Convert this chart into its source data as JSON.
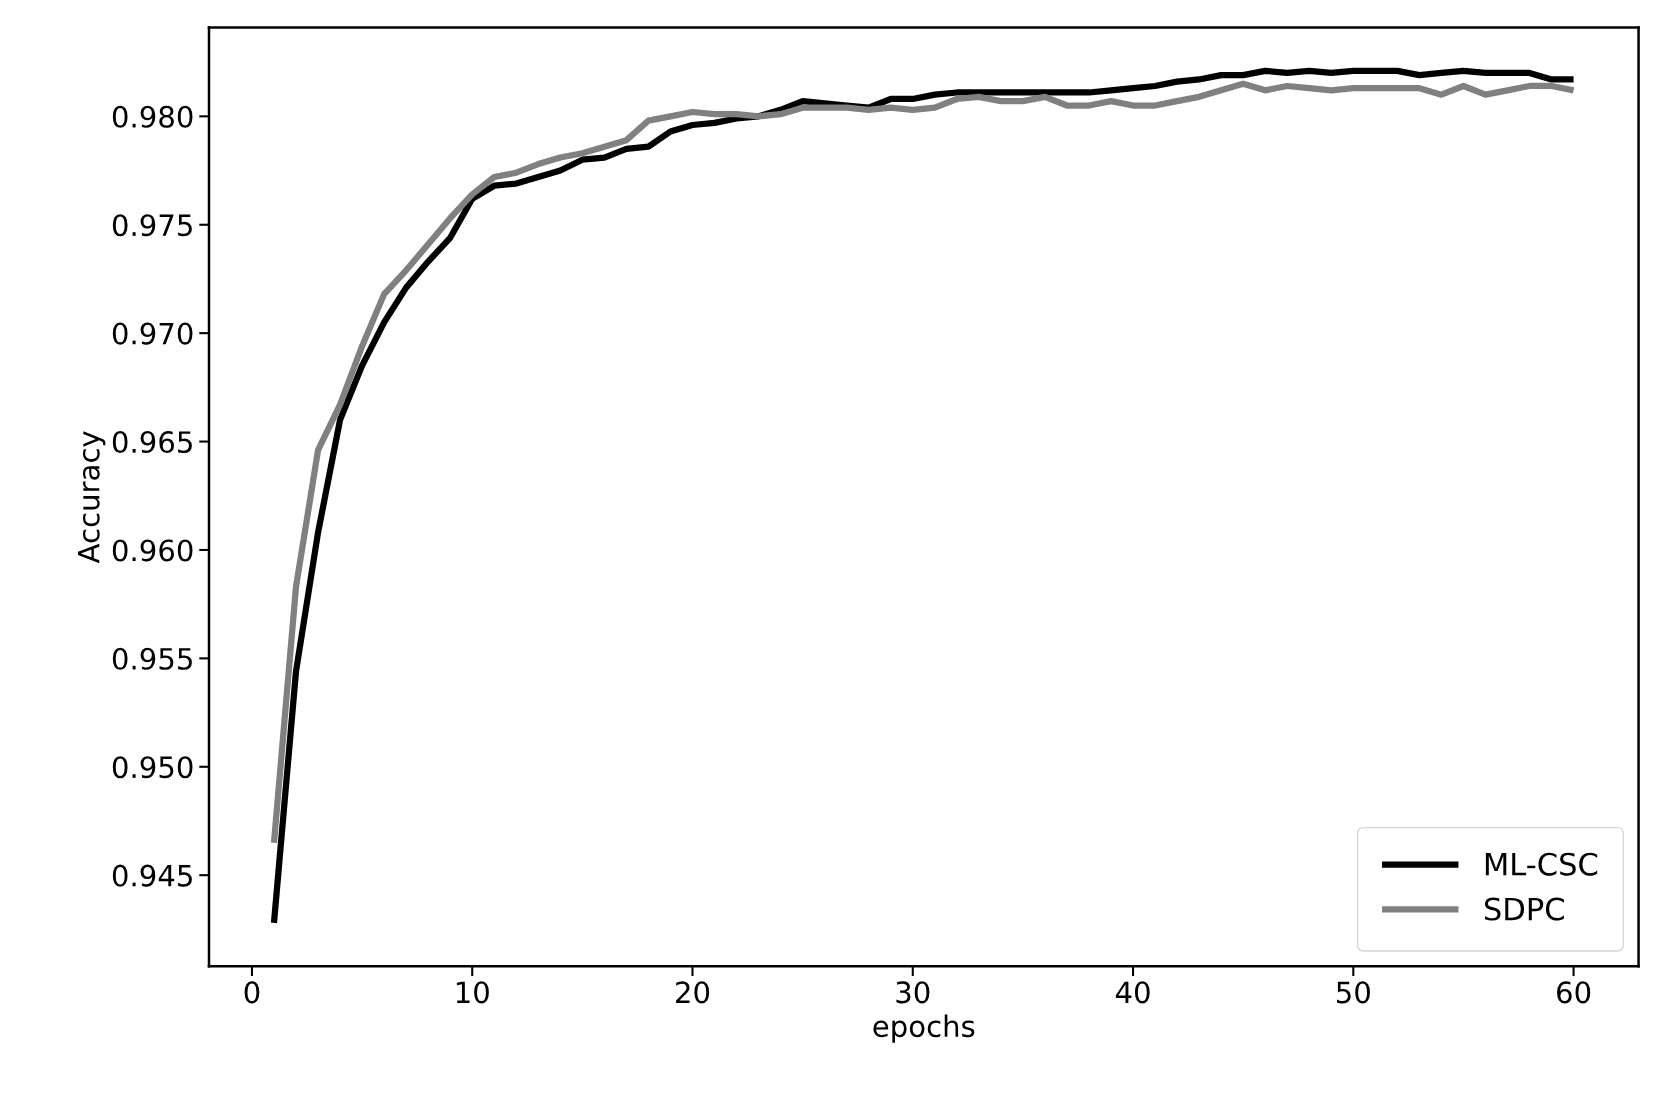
{
  "chart_data": {
    "type": "line",
    "xlabel": "epochs",
    "ylabel": "Accuracy",
    "x": [
      1,
      2,
      3,
      4,
      5,
      6,
      7,
      8,
      9,
      10,
      11,
      12,
      13,
      14,
      15,
      16,
      17,
      18,
      19,
      20,
      21,
      22,
      23,
      24,
      25,
      26,
      27,
      28,
      29,
      30,
      31,
      32,
      33,
      34,
      35,
      36,
      37,
      38,
      39,
      40,
      41,
      42,
      43,
      44,
      45,
      46,
      47,
      48,
      49,
      50,
      51,
      52,
      53,
      54,
      55,
      56,
      57,
      58,
      59,
      60
    ],
    "series": [
      {
        "name": "ML-CSC",
        "color": "#000000",
        "values": [
          0.9428,
          0.9544,
          0.9608,
          0.966,
          0.9685,
          0.9705,
          0.9721,
          0.9733,
          0.9744,
          0.9762,
          0.9768,
          0.9769,
          0.9772,
          0.9775,
          0.978,
          0.9781,
          0.9785,
          0.9786,
          0.9793,
          0.9796,
          0.9797,
          0.9799,
          0.98,
          0.9803,
          0.9807,
          0.9806,
          0.9805,
          0.9804,
          0.9808,
          0.9808,
          0.981,
          0.9811,
          0.9811,
          0.9811,
          0.9811,
          0.9811,
          0.9811,
          0.9811,
          0.9812,
          0.9813,
          0.9814,
          0.9816,
          0.9817,
          0.9819,
          0.9819,
          0.9821,
          0.982,
          0.9821,
          0.982,
          0.9821,
          0.9821,
          0.9821,
          0.9819,
          0.982,
          0.9821,
          0.982,
          0.982,
          0.982,
          0.9817,
          0.9817
        ]
      },
      {
        "name": "SDPC",
        "color": "#808080",
        "values": [
          0.9465,
          0.9583,
          0.9646,
          0.9667,
          0.9694,
          0.9718,
          0.9729,
          0.9741,
          0.9753,
          0.9764,
          0.9772,
          0.9774,
          0.9778,
          0.9781,
          0.9783,
          0.9786,
          0.9789,
          0.9798,
          0.98,
          0.9802,
          0.9801,
          0.9801,
          0.98,
          0.9801,
          0.9804,
          0.9804,
          0.9804,
          0.9803,
          0.9804,
          0.9803,
          0.9804,
          0.9808,
          0.9809,
          0.9807,
          0.9807,
          0.9809,
          0.9805,
          0.9805,
          0.9807,
          0.9805,
          0.9805,
          0.9807,
          0.9809,
          0.9812,
          0.9815,
          0.9812,
          0.9814,
          0.9813,
          0.9812,
          0.9813,
          0.9813,
          0.9813,
          0.9813,
          0.981,
          0.9814,
          0.981,
          0.9812,
          0.9814,
          0.9814,
          0.9812
        ]
      }
    ],
    "xlim": [
      -1.95,
      62.95
    ],
    "ylim": [
      0.9408,
      0.9841
    ],
    "xticks": [
      0,
      10,
      20,
      30,
      40,
      50,
      60
    ],
    "yticks": [
      {
        "value": 0.945,
        "label": "0.945"
      },
      {
        "value": 0.95,
        "label": "0.950"
      },
      {
        "value": 0.955,
        "label": "0.955"
      },
      {
        "value": 0.96,
        "label": "0.960"
      },
      {
        "value": 0.965,
        "label": "0.965"
      },
      {
        "value": 0.97,
        "label": "0.970"
      },
      {
        "value": 0.975,
        "label": "0.975"
      },
      {
        "value": 0.98,
        "label": "0.980"
      }
    ],
    "legend": "lower right",
    "grid": false,
    "line_style": "solid",
    "marker": "none"
  }
}
